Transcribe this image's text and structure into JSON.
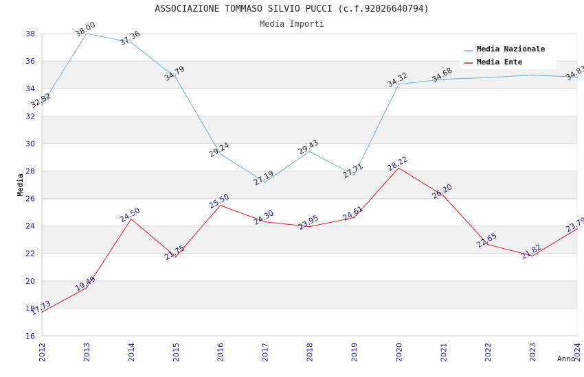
{
  "header": {
    "title": "ASSOCIAZIONE TOMMASO SILVIO PUCCI (c.f.92026640794)",
    "subtitle": "Media Importi"
  },
  "colors": {
    "nazionale": "#6aaee8",
    "ente": "#e8141e",
    "nazionale_label": "#222222",
    "ente_label": "#1a1a8c",
    "axis_tick": "#1a1ab0",
    "band": "#f2f2f2",
    "grid": "#d8d8d8"
  },
  "chart_data": {
    "type": "line",
    "title": "ASSOCIAZIONE TOMMASO SILVIO PUCCI (c.f.92026640794)",
    "subtitle": "Media Importi",
    "xlabel": "Anno",
    "ylabel": "Media",
    "x": [
      "2012",
      "2013",
      "2014",
      "2015",
      "2016",
      "2017",
      "2018",
      "2019",
      "2020",
      "2021",
      "2022",
      "2023",
      "2024"
    ],
    "ylim": [
      16,
      38
    ],
    "yticks": [
      16,
      18,
      20,
      22,
      24,
      26,
      28,
      30,
      32,
      34,
      36,
      38
    ],
    "grid": true,
    "legend_position": "top-right",
    "series": [
      {
        "name": "Media Nazionale",
        "values": [
          32.82,
          38.0,
          37.36,
          34.79,
          29.24,
          27.19,
          29.43,
          27.71,
          34.32,
          34.68,
          34.8,
          34.98,
          34.83
        ],
        "labels": [
          "32.82",
          "38.00",
          "37.36",
          "34.79",
          "29.24",
          "27.19",
          "29.43",
          "27.71",
          "34.32",
          "34.68",
          "",
          "",
          "34.83"
        ]
      },
      {
        "name": "Media Ente",
        "values": [
          17.73,
          19.49,
          24.5,
          21.75,
          25.5,
          24.3,
          23.95,
          24.61,
          28.22,
          26.2,
          22.65,
          21.82,
          23.79
        ],
        "labels": [
          "17.73",
          "19.49",
          "24.50",
          "21.75",
          "25.50",
          "24.30",
          "23.95",
          "24.61",
          "28.22",
          "26.20",
          "22.65",
          "21.82",
          "23.79"
        ]
      }
    ]
  }
}
